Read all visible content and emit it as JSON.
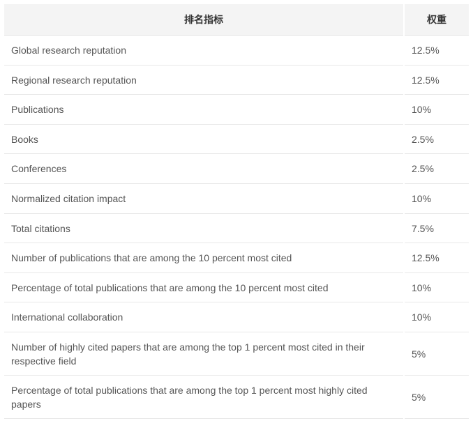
{
  "table": {
    "columns": [
      "排名指标",
      "权重"
    ],
    "column_widths": [
      "auto",
      "92px"
    ],
    "header_align": "center",
    "header_bg": "#f4f4f4",
    "row_border_color": "#e8e8e8",
    "text_color": "#555555",
    "font_size_pt": 10.5,
    "background_color": "#ffffff",
    "rows": [
      {
        "indicator": "Global research reputation",
        "weight": "12.5%"
      },
      {
        "indicator": "Regional research reputation",
        "weight": "12.5%"
      },
      {
        "indicator": "Publications",
        "weight": "10%"
      },
      {
        "indicator": "Books",
        "weight": "2.5%"
      },
      {
        "indicator": "Conferences",
        "weight": "2.5%"
      },
      {
        "indicator": "Normalized citation impact",
        "weight": "10%"
      },
      {
        "indicator": "Total citations",
        "weight": "7.5%"
      },
      {
        "indicator": "Number of publications that are among the 10 percent most cited",
        "weight": "12.5%"
      },
      {
        "indicator": "Percentage of total publications that are among the 10 percent most cited",
        "weight": "10%"
      },
      {
        "indicator": "International collaboration",
        "weight": "10%"
      },
      {
        "indicator": "Number of highly cited papers that are among the top 1 percent most cited in their respective field",
        "weight": "5%"
      },
      {
        "indicator": "Percentage of total publications that are among the top 1 percent most highly cited papers",
        "weight": "5%"
      }
    ]
  }
}
